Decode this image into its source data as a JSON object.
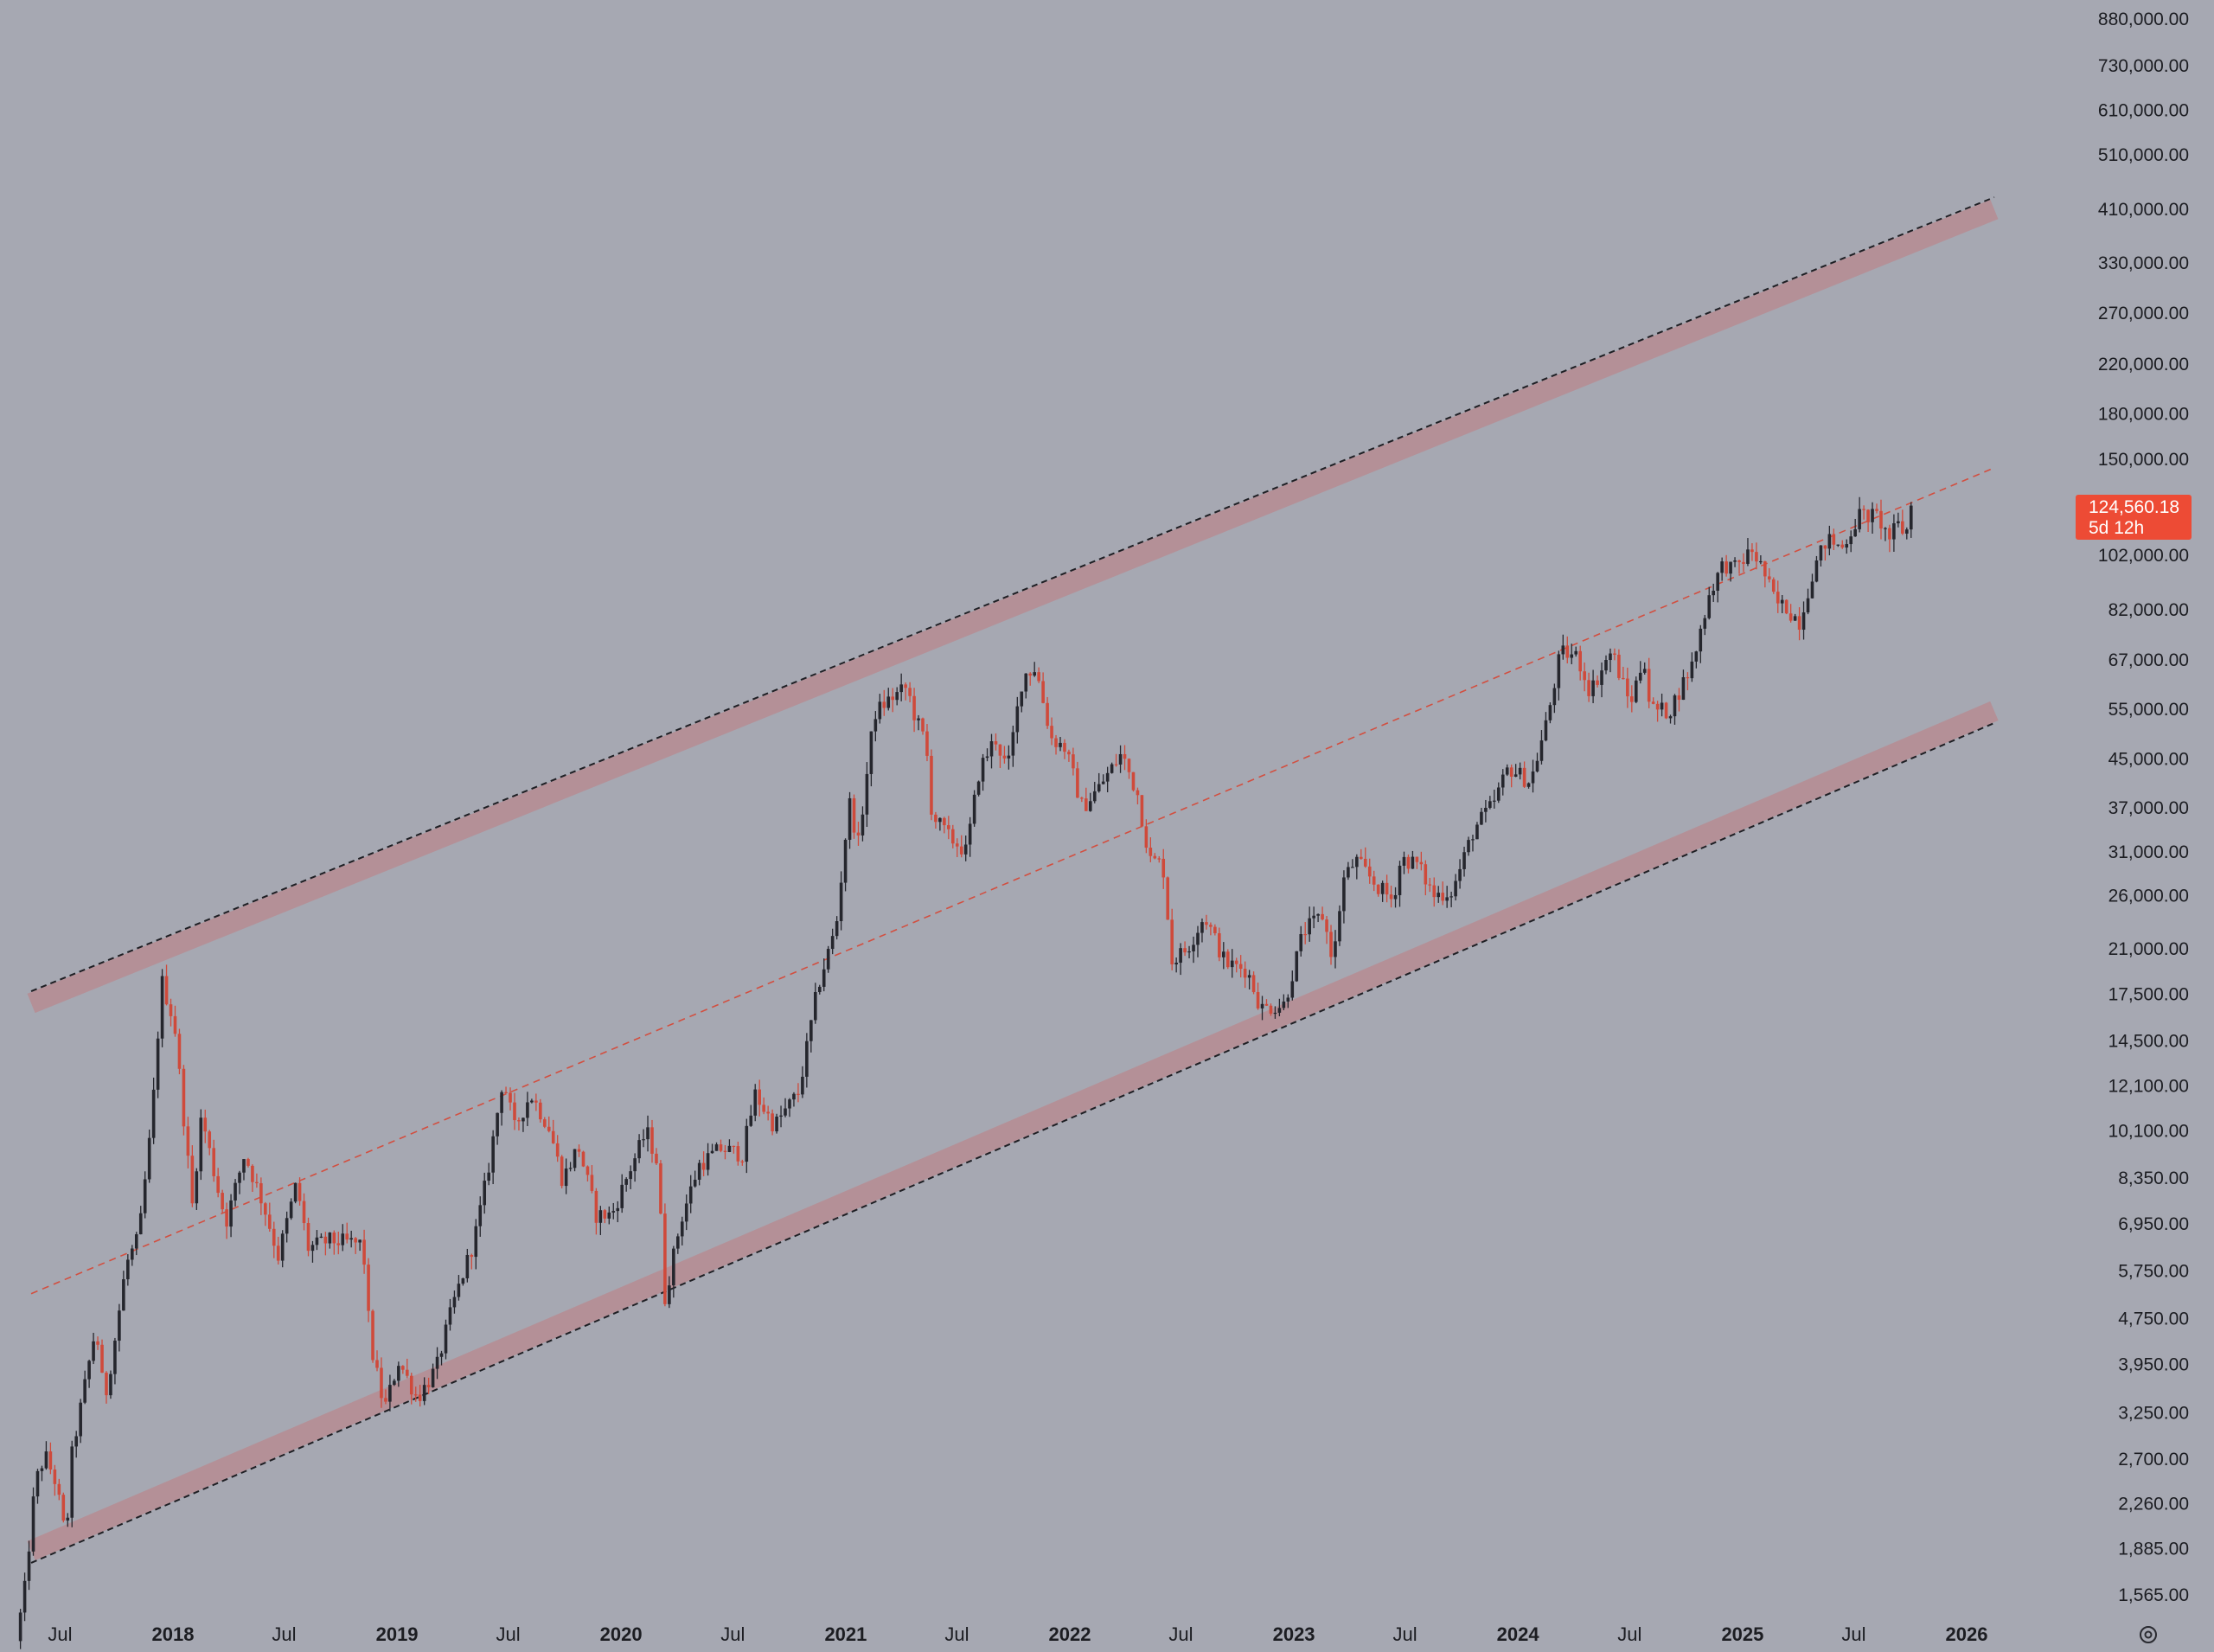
{
  "chart_data": {
    "type": "candlestick",
    "y_scale": "log",
    "ylim": [
      1450,
      950000
    ],
    "xlim": [
      "2017-04-20",
      "2026-04-25"
    ],
    "y_ticks": [
      {
        "value": 880000,
        "label": "880,000.00"
      },
      {
        "value": 730000,
        "label": "730,000.00"
      },
      {
        "value": 610000,
        "label": "610,000.00"
      },
      {
        "value": 510000,
        "label": "510,000.00"
      },
      {
        "value": 410000,
        "label": "410,000.00"
      },
      {
        "value": 330000,
        "label": "330,000.00"
      },
      {
        "value": 270000,
        "label": "270,000.00"
      },
      {
        "value": 220000,
        "label": "220,000.00"
      },
      {
        "value": 180000,
        "label": "180,000.00"
      },
      {
        "value": 150000,
        "label": "150,000.00"
      },
      {
        "value": 102000,
        "label": "102,000.00"
      },
      {
        "value": 82000,
        "label": "82,000.00"
      },
      {
        "value": 67000,
        "label": "67,000.00"
      },
      {
        "value": 55000,
        "label": "55,000.00"
      },
      {
        "value": 45000,
        "label": "45,000.00"
      },
      {
        "value": 37000,
        "label": "37,000.00"
      },
      {
        "value": 31000,
        "label": "31,000.00"
      },
      {
        "value": 26000,
        "label": "26,000.00"
      },
      {
        "value": 21000,
        "label": "21,000.00"
      },
      {
        "value": 17500,
        "label": "17,500.00"
      },
      {
        "value": 14500,
        "label": "14,500.00"
      },
      {
        "value": 12100,
        "label": "12,100.00"
      },
      {
        "value": 10100,
        "label": "10,100.00"
      },
      {
        "value": 8350,
        "label": "8,350.00"
      },
      {
        "value": 6950,
        "label": "6,950.00"
      },
      {
        "value": 5750,
        "label": "5,750.00"
      },
      {
        "value": 4750,
        "label": "4,750.00"
      },
      {
        "value": 3950,
        "label": "3,950.00"
      },
      {
        "value": 3250,
        "label": "3,250.00"
      },
      {
        "value": 2700,
        "label": "2,700.00"
      },
      {
        "value": 2260,
        "label": "2,260.00"
      },
      {
        "value": 1885,
        "label": "1,885.00"
      },
      {
        "value": 1565,
        "label": "1,565.00"
      }
    ],
    "x_ticks": [
      {
        "date": "2017-07-01",
        "label": "Jul",
        "bold": false
      },
      {
        "date": "2018-01-01",
        "label": "2018",
        "bold": true
      },
      {
        "date": "2018-07-01",
        "label": "Jul",
        "bold": false
      },
      {
        "date": "2019-01-01",
        "label": "2019",
        "bold": true
      },
      {
        "date": "2019-07-01",
        "label": "Jul",
        "bold": false
      },
      {
        "date": "2020-01-01",
        "label": "2020",
        "bold": true
      },
      {
        "date": "2020-07-01",
        "label": "Jul",
        "bold": false
      },
      {
        "date": "2021-01-01",
        "label": "2021",
        "bold": true
      },
      {
        "date": "2021-07-01",
        "label": "Jul",
        "bold": false
      },
      {
        "date": "2022-01-01",
        "label": "2022",
        "bold": true
      },
      {
        "date": "2022-07-01",
        "label": "Jul",
        "bold": false
      },
      {
        "date": "2023-01-01",
        "label": "2023",
        "bold": true
      },
      {
        "date": "2023-07-01",
        "label": "Jul",
        "bold": false
      },
      {
        "date": "2024-01-01",
        "label": "2024",
        "bold": true
      },
      {
        "date": "2024-07-01",
        "label": "Jul",
        "bold": false
      },
      {
        "date": "2025-01-01",
        "label": "2025",
        "bold": true
      },
      {
        "date": "2025-07-01",
        "label": "Jul",
        "bold": false
      },
      {
        "date": "2026-01-01",
        "label": "2026",
        "bold": true
      }
    ],
    "grid": false,
    "legend": "none",
    "colors": {
      "background": "#a6a8b2",
      "up": "#25262d",
      "down": "#cf4a3b",
      "channel_band": "#b58f96",
      "channel_line": "#1e1f24",
      "midline": "#d24f40",
      "badge": "#ed4b35"
    },
    "last_price": {
      "value": 124560.18,
      "label": "124,560.18",
      "countdown": "5d 12h"
    },
    "channel": {
      "upper": [
        {
          "date": "2017-05-15",
          "value": 17700
        },
        {
          "date": "2026-02-15",
          "value": 430000
        }
      ],
      "lower": [
        {
          "date": "2017-05-15",
          "value": 1780
        },
        {
          "date": "2026-02-15",
          "value": 52000
        }
      ],
      "middle": [
        {
          "date": "2017-05-15",
          "value": 5250
        },
        {
          "date": "2026-02-15",
          "value": 145000
        }
      ]
    },
    "price_anchors": [
      {
        "date": "2017-04-24",
        "value": 1300
      },
      {
        "date": "2017-05-08",
        "value": 1600
      },
      {
        "date": "2017-05-25",
        "value": 2450
      },
      {
        "date": "2017-06-10",
        "value": 2750
      },
      {
        "date": "2017-06-28",
        "value": 2450
      },
      {
        "date": "2017-07-14",
        "value": 1950
      },
      {
        "date": "2017-07-24",
        "value": 2750
      },
      {
        "date": "2017-08-10",
        "value": 3450
      },
      {
        "date": "2017-09-01",
        "value": 4600
      },
      {
        "date": "2017-09-15",
        "value": 3400
      },
      {
        "date": "2017-10-01",
        "value": 4300
      },
      {
        "date": "2017-10-20",
        "value": 5900
      },
      {
        "date": "2017-11-10",
        "value": 6600
      },
      {
        "date": "2017-12-01",
        "value": 10500
      },
      {
        "date": "2017-12-17",
        "value": 18500
      },
      {
        "date": "2018-01-07",
        "value": 15500
      },
      {
        "date": "2018-02-05",
        "value": 7500
      },
      {
        "date": "2018-02-20",
        "value": 10800
      },
      {
        "date": "2018-03-15",
        "value": 8300
      },
      {
        "date": "2018-04-01",
        "value": 7000
      },
      {
        "date": "2018-05-01",
        "value": 9200
      },
      {
        "date": "2018-06-01",
        "value": 7500
      },
      {
        "date": "2018-06-25",
        "value": 6100
      },
      {
        "date": "2018-07-25",
        "value": 8200
      },
      {
        "date": "2018-08-12",
        "value": 6300
      },
      {
        "date": "2018-09-15",
        "value": 6500
      },
      {
        "date": "2018-10-15",
        "value": 6450
      },
      {
        "date": "2018-11-10",
        "value": 6400
      },
      {
        "date": "2018-11-22",
        "value": 4300
      },
      {
        "date": "2018-12-15",
        "value": 3300
      },
      {
        "date": "2019-01-07",
        "value": 4000
      },
      {
        "date": "2019-02-07",
        "value": 3450
      },
      {
        "date": "2019-03-10",
        "value": 3900
      },
      {
        "date": "2019-04-05",
        "value": 5000
      },
      {
        "date": "2019-05-10",
        "value": 6500
      },
      {
        "date": "2019-06-01",
        "value": 8500
      },
      {
        "date": "2019-06-26",
        "value": 12500
      },
      {
        "date": "2019-07-15",
        "value": 10200
      },
      {
        "date": "2019-08-10",
        "value": 11700
      },
      {
        "date": "2019-09-10",
        "value": 10200
      },
      {
        "date": "2019-10-01",
        "value": 8300
      },
      {
        "date": "2019-10-27",
        "value": 9500
      },
      {
        "date": "2019-11-25",
        "value": 7200
      },
      {
        "date": "2019-12-20",
        "value": 7200
      },
      {
        "date": "2020-01-20",
        "value": 8700
      },
      {
        "date": "2020-02-15",
        "value": 10100
      },
      {
        "date": "2020-03-05",
        "value": 8800
      },
      {
        "date": "2020-03-15",
        "value": 5100
      },
      {
        "date": "2020-04-10",
        "value": 7000
      },
      {
        "date": "2020-05-10",
        "value": 8800
      },
      {
        "date": "2020-06-15",
        "value": 9400
      },
      {
        "date": "2020-07-20",
        "value": 9200
      },
      {
        "date": "2020-08-10",
        "value": 11700
      },
      {
        "date": "2020-09-10",
        "value": 10300
      },
      {
        "date": "2020-10-20",
        "value": 11800
      },
      {
        "date": "2020-11-20",
        "value": 18000
      },
      {
        "date": "2020-12-20",
        "value": 23000
      },
      {
        "date": "2021-01-10",
        "value": 38000
      },
      {
        "date": "2021-01-25",
        "value": 32000
      },
      {
        "date": "2021-02-20",
        "value": 54000
      },
      {
        "date": "2021-03-15",
        "value": 57000
      },
      {
        "date": "2021-04-14",
        "value": 60000
      },
      {
        "date": "2021-04-28",
        "value": 53000
      },
      {
        "date": "2021-05-15",
        "value": 48000
      },
      {
        "date": "2021-05-25",
        "value": 36000
      },
      {
        "date": "2021-06-20",
        "value": 33000
      },
      {
        "date": "2021-07-20",
        "value": 31000
      },
      {
        "date": "2021-08-10",
        "value": 43000
      },
      {
        "date": "2021-09-05",
        "value": 49000
      },
      {
        "date": "2021-09-25",
        "value": 43000
      },
      {
        "date": "2021-10-20",
        "value": 63000
      },
      {
        "date": "2021-11-10",
        "value": 65000
      },
      {
        "date": "2021-12-05",
        "value": 49000
      },
      {
        "date": "2021-12-28",
        "value": 47000
      },
      {
        "date": "2022-01-25",
        "value": 37000
      },
      {
        "date": "2022-02-20",
        "value": 40000
      },
      {
        "date": "2022-03-30",
        "value": 46000
      },
      {
        "date": "2022-04-25",
        "value": 39000
      },
      {
        "date": "2022-05-15",
        "value": 30000
      },
      {
        "date": "2022-06-05",
        "value": 29500
      },
      {
        "date": "2022-06-20",
        "value": 20000
      },
      {
        "date": "2022-07-15",
        "value": 21000
      },
      {
        "date": "2022-08-12",
        "value": 24000
      },
      {
        "date": "2022-09-15",
        "value": 19800
      },
      {
        "date": "2022-10-20",
        "value": 19300
      },
      {
        "date": "2022-11-12",
        "value": 16500
      },
      {
        "date": "2022-12-20",
        "value": 16800
      },
      {
        "date": "2023-01-20",
        "value": 22500
      },
      {
        "date": "2023-02-20",
        "value": 24000
      },
      {
        "date": "2023-03-10",
        "value": 20000
      },
      {
        "date": "2023-03-25",
        "value": 27500
      },
      {
        "date": "2023-04-15",
        "value": 30000
      },
      {
        "date": "2023-05-20",
        "value": 27000
      },
      {
        "date": "2023-06-15",
        "value": 25500
      },
      {
        "date": "2023-06-28",
        "value": 30200
      },
      {
        "date": "2023-07-25",
        "value": 29500
      },
      {
        "date": "2023-08-20",
        "value": 26000
      },
      {
        "date": "2023-09-20",
        "value": 26500
      },
      {
        "date": "2023-10-25",
        "value": 34000
      },
      {
        "date": "2023-11-25",
        "value": 37500
      },
      {
        "date": "2023-12-20",
        "value": 43500
      },
      {
        "date": "2024-01-25",
        "value": 41000
      },
      {
        "date": "2024-02-20",
        "value": 52000
      },
      {
        "date": "2024-03-14",
        "value": 69000
      },
      {
        "date": "2024-04-10",
        "value": 68000
      },
      {
        "date": "2024-05-01",
        "value": 59000
      },
      {
        "date": "2024-06-05",
        "value": 69500
      },
      {
        "date": "2024-07-05",
        "value": 56000
      },
      {
        "date": "2024-07-28",
        "value": 68000
      },
      {
        "date": "2024-08-07",
        "value": 55000
      },
      {
        "date": "2024-09-07",
        "value": 54500
      },
      {
        "date": "2024-10-15",
        "value": 66000
      },
      {
        "date": "2024-11-12",
        "value": 88000
      },
      {
        "date": "2024-12-05",
        "value": 99000
      },
      {
        "date": "2024-12-20",
        "value": 96000
      },
      {
        "date": "2025-01-20",
        "value": 104000
      },
      {
        "date": "2025-02-05",
        "value": 97000
      },
      {
        "date": "2025-02-28",
        "value": 84000
      },
      {
        "date": "2025-03-15",
        "value": 83000
      },
      {
        "date": "2025-04-08",
        "value": 78000
      },
      {
        "date": "2025-04-28",
        "value": 95000
      },
      {
        "date": "2025-05-22",
        "value": 109000
      },
      {
        "date": "2025-06-15",
        "value": 105000
      },
      {
        "date": "2025-07-14",
        "value": 120000
      },
      {
        "date": "2025-08-14",
        "value": 119000
      },
      {
        "date": "2025-08-30",
        "value": 109000
      },
      {
        "date": "2025-09-15",
        "value": 115000
      },
      {
        "date": "2025-09-28",
        "value": 111000
      },
      {
        "date": "2025-10-05",
        "value": 124560
      }
    ]
  }
}
